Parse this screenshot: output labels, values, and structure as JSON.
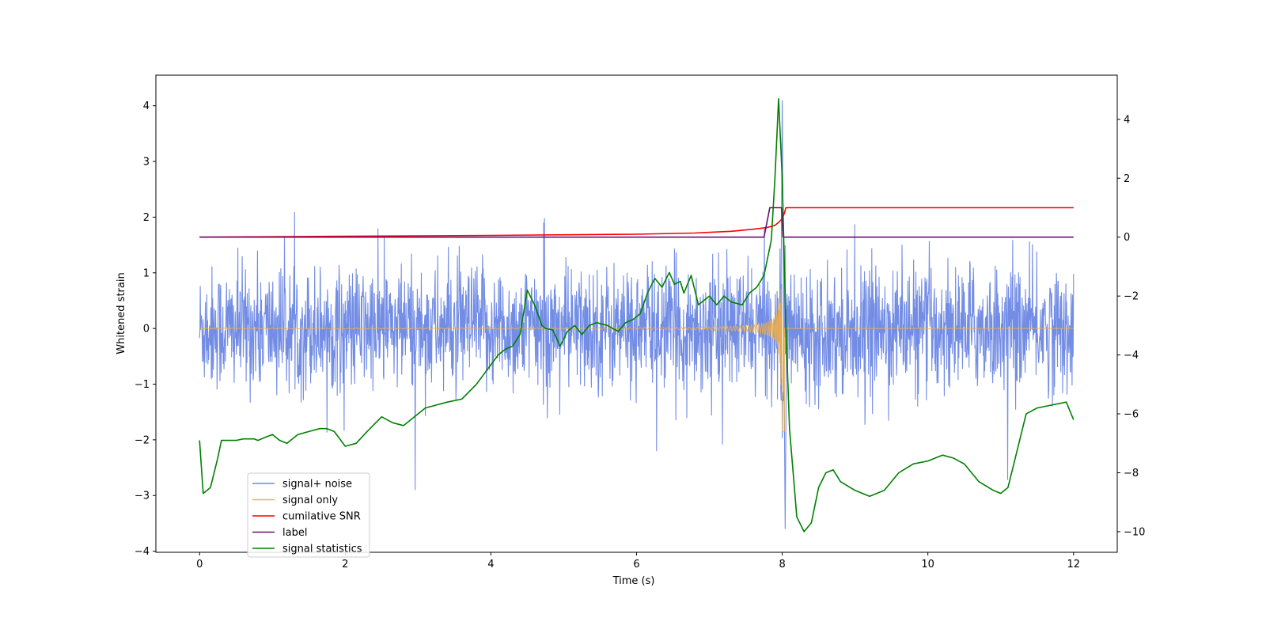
{
  "chart_data": {
    "type": "line",
    "xlabel": "Time (s)",
    "ylabel": "Whitened strain",
    "ylabel_right": "",
    "xlim": [
      -0.6,
      12.6
    ],
    "ylim": [
      -4.02,
      4.55
    ],
    "ylim_right": [
      -10.7,
      5.5
    ],
    "x_ticks": [
      0,
      2,
      4,
      6,
      8,
      10,
      12
    ],
    "y_ticks": [
      -4,
      -3,
      -2,
      -1,
      0,
      1,
      2,
      3,
      4
    ],
    "y_ticks_right": [
      -10,
      -8,
      -6,
      -4,
      -2,
      0,
      2,
      4
    ],
    "grid": false,
    "legend_position": "lower-left",
    "series": [
      {
        "name": "signal+ noise",
        "axis": "left",
        "color": "#6b87e4",
        "style": "dense noisy strain trace",
        "x_range": [
          0,
          12
        ],
        "noise_std": 0.55,
        "peak_max": 4.1,
        "peak_min": -3.6,
        "peak_time": 8.0
      },
      {
        "name": "signal only",
        "axis": "left",
        "color": "#f5b041",
        "style": "chirp oscillation growing toward merger",
        "x_range": [
          0,
          12
        ],
        "merger_time": 8.0,
        "peak_amplitude": 2.3
      },
      {
        "name": "cumilative SNR",
        "axis": "right",
        "color": "#ff0000",
        "x": [
          0,
          2,
          4,
          6,
          6.8,
          7.3,
          7.6,
          7.8,
          7.9,
          7.95,
          8.0,
          8.03,
          8.05,
          12
        ],
        "y": [
          0.0,
          0.03,
          0.06,
          0.1,
          0.14,
          0.2,
          0.27,
          0.33,
          0.4,
          0.5,
          0.62,
          0.82,
          1.0,
          1.0
        ]
      },
      {
        "name": "label",
        "axis": "right",
        "color": "#6a0d75",
        "x": [
          0,
          7.75,
          7.83,
          7.99,
          8.01,
          12
        ],
        "y": [
          0,
          0,
          1,
          1,
          0,
          0
        ]
      },
      {
        "name": "signal statistics",
        "axis": "right",
        "color": "#008000",
        "x": [
          0,
          0.05,
          0.15,
          0.25,
          0.3,
          0.5,
          0.6,
          0.75,
          0.8,
          0.9,
          1.0,
          1.1,
          1.2,
          1.35,
          1.5,
          1.65,
          1.75,
          1.85,
          2.0,
          2.15,
          2.3,
          2.5,
          2.65,
          2.8,
          2.95,
          3.1,
          3.25,
          3.4,
          3.6,
          3.8,
          3.95,
          4.1,
          4.2,
          4.3,
          4.4,
          4.5,
          4.6,
          4.7,
          4.75,
          4.85,
          4.95,
          5.05,
          5.15,
          5.25,
          5.35,
          5.45,
          5.6,
          5.75,
          5.85,
          5.95,
          6.05,
          6.15,
          6.25,
          6.35,
          6.45,
          6.52,
          6.6,
          6.65,
          6.75,
          6.85,
          7.0,
          7.1,
          7.2,
          7.3,
          7.45,
          7.55,
          7.65,
          7.75,
          7.85,
          7.9,
          7.95,
          8.0,
          8.05,
          8.1,
          8.15,
          8.2,
          8.3,
          8.4,
          8.5,
          8.6,
          8.7,
          8.8,
          9.0,
          9.2,
          9.4,
          9.6,
          9.8,
          10.0,
          10.2,
          10.35,
          10.5,
          10.7,
          10.9,
          11.0,
          11.1,
          11.2,
          11.35,
          11.5,
          11.7,
          11.9,
          12.0
        ],
        "y": [
          -6.9,
          -8.7,
          -8.5,
          -7.5,
          -6.9,
          -6.9,
          -6.85,
          -6.85,
          -6.9,
          -6.8,
          -6.7,
          -6.9,
          -7.0,
          -6.7,
          -6.6,
          -6.5,
          -6.5,
          -6.6,
          -7.1,
          -7.0,
          -6.6,
          -6.1,
          -6.3,
          -6.4,
          -6.1,
          -5.8,
          -5.7,
          -5.6,
          -5.5,
          -5.0,
          -4.5,
          -4.0,
          -3.8,
          -3.7,
          -3.3,
          -1.8,
          -2.3,
          -3.0,
          -3.1,
          -3.15,
          -3.7,
          -3.2,
          -3.0,
          -3.3,
          -3.0,
          -2.9,
          -3.0,
          -3.2,
          -2.9,
          -2.8,
          -2.6,
          -1.9,
          -1.4,
          -1.7,
          -1.2,
          -1.6,
          -1.5,
          -1.9,
          -1.3,
          -2.3,
          -2.0,
          -2.3,
          -2.0,
          -2.2,
          -2.3,
          -1.9,
          -1.7,
          -1.3,
          -0.1,
          2.0,
          4.7,
          2.0,
          -3.0,
          -6.5,
          -8.0,
          -9.5,
          -10.0,
          -9.7,
          -8.5,
          -8.0,
          -7.9,
          -8.3,
          -8.6,
          -8.8,
          -8.6,
          -8.0,
          -7.7,
          -7.6,
          -7.4,
          -7.5,
          -7.7,
          -8.3,
          -8.6,
          -8.7,
          -8.5,
          -7.5,
          -6.0,
          -5.8,
          -5.7,
          -5.6,
          -6.2
        ]
      }
    ]
  }
}
